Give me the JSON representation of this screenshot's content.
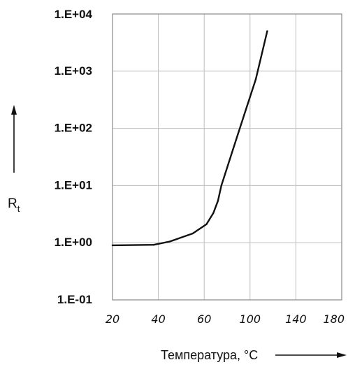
{
  "chart_data": {
    "type": "line",
    "scale_y": "log",
    "grid": true,
    "xlabel": "Температура, °С",
    "ylabel": {
      "main": "R",
      "sub": "t"
    },
    "x_ticks": [
      "20",
      "40",
      "60",
      "100",
      "140",
      "180"
    ],
    "y_ticks": [
      "1.E+04",
      "1.E+03",
      "1.E+02",
      "1.E+01",
      "1.E+00",
      "1.E-01"
    ],
    "series": [
      {
        "points": [
          {
            "x": 20,
            "y": 0.9
          },
          {
            "x": 38,
            "y": 0.92
          },
          {
            "x": 45,
            "y": 1.05
          },
          {
            "x": 55,
            "y": 1.45
          },
          {
            "x": 62,
            "y": 2.1
          },
          {
            "x": 68,
            "y": 3.3
          },
          {
            "x": 72,
            "y": 5.4
          },
          {
            "x": 75,
            "y": 10
          },
          {
            "x": 85,
            "y": 42
          },
          {
            "x": 95,
            "y": 175
          },
          {
            "x": 105,
            "y": 720
          },
          {
            "x": 115,
            "y": 5000
          }
        ]
      }
    ],
    "colors": {
      "line": "#111111",
      "grid": "#bdbdbd",
      "frame": "#888888"
    }
  }
}
